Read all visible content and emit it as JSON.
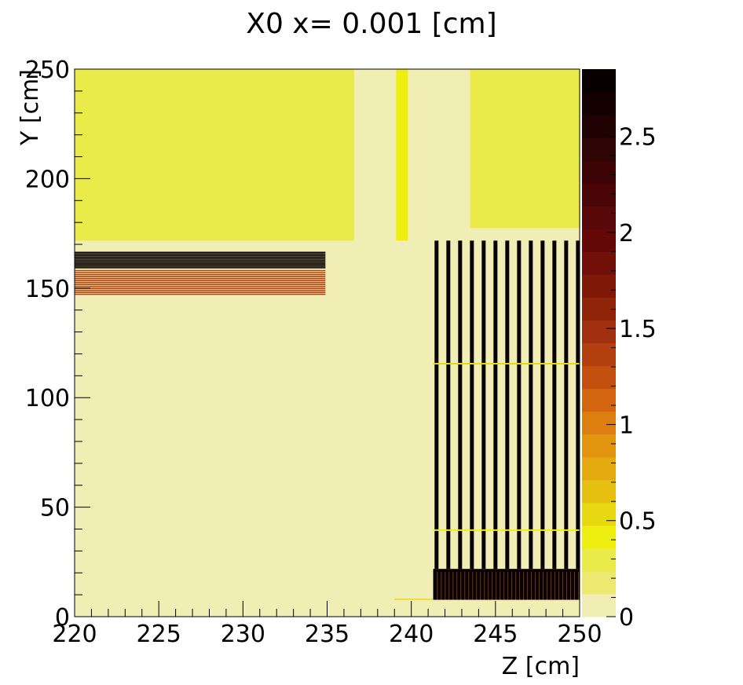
{
  "chart_data": {
    "type": "heatmap",
    "title": "X0 x=  0.001 [cm]",
    "xlabel": "Z [cm]",
    "ylabel": "Y [cm]",
    "xlim": [
      220,
      250
    ],
    "ylim": [
      0,
      250
    ],
    "x_ticks": [
      220,
      225,
      230,
      235,
      240,
      245,
      250
    ],
    "y_ticks": [
      0,
      50,
      100,
      150,
      200,
      250
    ],
    "colorbar": {
      "range": [
        0,
        2.85
      ],
      "tick_values": [
        0,
        0.5,
        1,
        1.5,
        2,
        2.5
      ],
      "tick_labels": [
        "0",
        "0.5",
        "1",
        "1.5",
        "2",
        "2.5"
      ],
      "palette": [
        "#f0eeb4",
        "#ece870",
        "#eaea48",
        "#eeee10",
        "#e8d810",
        "#e6c010",
        "#e4aa10",
        "#e29610",
        "#dc7e10",
        "#d46610",
        "#c45010",
        "#b44010",
        "#a03010",
        "#902408",
        "#801808",
        "#701008",
        "#640808",
        "#580808",
        "#4a0606",
        "#3c0404",
        "#2e0404",
        "#200202",
        "#140000",
        "#080000"
      ]
    },
    "background_value": 0.1,
    "regions": [
      {
        "name": "upper-left-block",
        "z": [
          220,
          236.6
        ],
        "y": [
          171.7,
          250
        ],
        "value": 0.25
      },
      {
        "name": "narrow-strip",
        "z": [
          239.1,
          239.8
        ],
        "y": [
          171.7,
          250
        ],
        "value": 0.45
      },
      {
        "name": "upper-right-block",
        "z": [
          243.5,
          250
        ],
        "y": [
          177.4,
          250
        ],
        "value": 0.25
      },
      {
        "name": "bottom-right-base",
        "z": [
          241.3,
          250
        ],
        "y": [
          7.7,
          21.8
        ],
        "value": 2.85
      },
      {
        "name": "bottom-base-ledge",
        "z": [
          239.0,
          241.3
        ],
        "y": [
          7.7,
          8.2
        ],
        "value": 0.5
      }
    ],
    "horizontal_layers": {
      "z": [
        220,
        234.9
      ],
      "layers": [
        {
          "y": 166.3,
          "value": 2.85
        },
        {
          "y": 165.6,
          "value": 2.85
        },
        {
          "y": 164.9,
          "value": 2.85
        },
        {
          "y": 164.2,
          "value": 2.85
        },
        {
          "y": 163.5,
          "value": 2.85
        },
        {
          "y": 162.8,
          "value": 2.85
        },
        {
          "y": 162.1,
          "value": 2.85
        },
        {
          "y": 161.4,
          "value": 2.85
        },
        {
          "y": 160.7,
          "value": 2.85
        },
        {
          "y": 160.0,
          "value": 2.85
        },
        {
          "y": 159.3,
          "value": 2.85
        },
        {
          "y": 158.0,
          "value": 1.35
        },
        {
          "y": 157.1,
          "value": 1.35
        },
        {
          "y": 156.2,
          "value": 1.35
        },
        {
          "y": 155.3,
          "value": 1.35
        },
        {
          "y": 154.4,
          "value": 1.35
        },
        {
          "y": 153.5,
          "value": 1.35
        },
        {
          "y": 152.6,
          "value": 1.35
        },
        {
          "y": 151.7,
          "value": 1.35
        },
        {
          "y": 150.8,
          "value": 1.35
        },
        {
          "y": 149.9,
          "value": 1.35
        },
        {
          "y": 149.0,
          "value": 1.35
        },
        {
          "y": 148.1,
          "value": 1.35
        },
        {
          "y": 147.2,
          "value": 1.35
        }
      ]
    },
    "vertical_bars": {
      "y": [
        21.8,
        171.7
      ],
      "value": 2.85,
      "z_centers": [
        241.5,
        242.2,
        242.9,
        243.6,
        244.3,
        245.0,
        245.7,
        246.4,
        247.1,
        247.8,
        248.5,
        249.2,
        249.9
      ]
    },
    "thin_lines": [
      {
        "y": 115.5,
        "z": [
          241.3,
          250
        ],
        "value": 0.5
      },
      {
        "y": 39.5,
        "z": [
          241.3,
          250
        ],
        "value": 0.45
      }
    ]
  }
}
